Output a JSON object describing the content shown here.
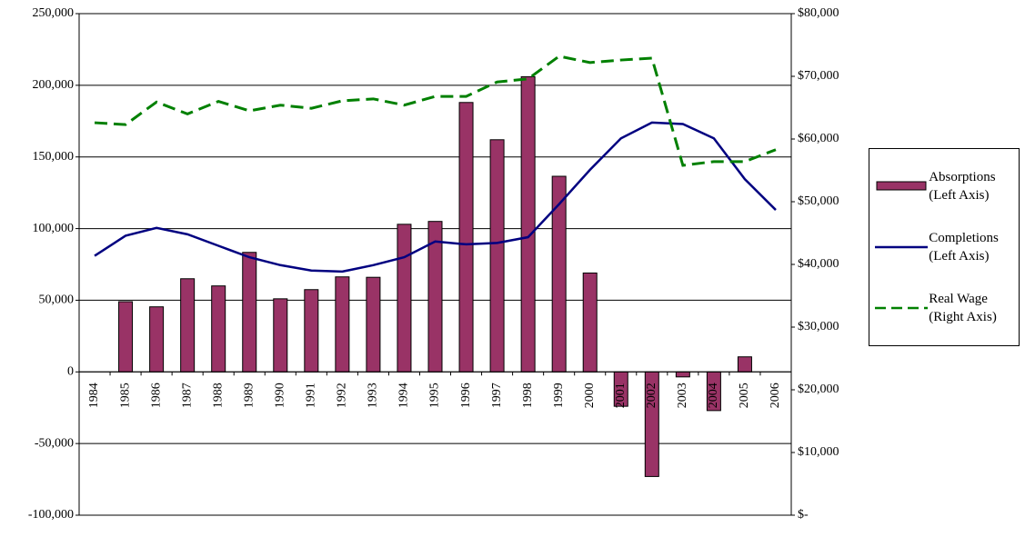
{
  "chart_data": {
    "type": "bar-line",
    "categories": [
      "1984",
      "1985",
      "1986",
      "1987",
      "1988",
      "1989",
      "1990",
      "1991",
      "1992",
      "1993",
      "1994",
      "1995",
      "1996",
      "1997",
      "1998",
      "1999",
      "2000",
      "2001",
      "2002",
      "2003",
      "2004",
      "2005",
      "2006"
    ],
    "series": [
      {
        "name": "Absorptions (Left Axis)",
        "type": "bar",
        "color": "#993366",
        "axis": "y",
        "values": [
          null,
          49000,
          45400,
          65000,
          60000,
          83400,
          51000,
          57400,
          66300,
          66000,
          103000,
          105000,
          188000,
          162000,
          206000,
          136500,
          69000,
          -24000,
          -73000,
          -3500,
          -27000,
          10500,
          null
        ]
      },
      {
        "name": "Completions (Left Axis)",
        "type": "line",
        "color": "#000080",
        "axis": "y",
        "values": [
          81000,
          95000,
          100500,
          96000,
          88000,
          80000,
          74500,
          70700,
          70000,
          74500,
          80000,
          91000,
          89000,
          90000,
          94000,
          117000,
          141000,
          163000,
          174000,
          173000,
          163000,
          134500,
          113000
        ]
      },
      {
        "name": "Real Wage (Right Axis)",
        "type": "dashed-line",
        "color": "#008000",
        "axis": "y2",
        "values": [
          62600,
          62300,
          65900,
          64000,
          66000,
          64500,
          65400,
          64900,
          66100,
          66400,
          65400,
          66800,
          66800,
          69100,
          69600,
          73200,
          72200,
          72600,
          72900,
          55800,
          56400,
          56400,
          58300
        ]
      }
    ],
    "ylim": [
      -100000,
      250000
    ],
    "yticks": [
      {
        "value": -100000,
        "label": "-100,000"
      },
      {
        "value": -50000,
        "label": "-50,000"
      },
      0,
      {
        "value": 50000,
        "label": "50,000"
      },
      {
        "value": 100000,
        "label": "100,000"
      },
      {
        "value": 150000,
        "label": "150,000"
      },
      {
        "value": 200000,
        "label": "200,000"
      },
      {
        "value": 250000,
        "label": "250,000"
      }
    ],
    "y2lim": [
      0,
      80000
    ],
    "y2ticks": [
      {
        "value": 0,
        "label": "$-"
      },
      {
        "value": 10000,
        "label": "$10,000"
      },
      {
        "value": 20000,
        "label": "$20,000"
      },
      {
        "value": 30000,
        "label": "$30,000"
      },
      {
        "value": 40000,
        "label": "$40,000"
      },
      {
        "value": 50000,
        "label": "$50,000"
      },
      {
        "value": 60000,
        "label": "$60,000"
      },
      {
        "value": 70000,
        "label": "$70,000"
      },
      {
        "value": 80000,
        "label": "$80,000"
      }
    ],
    "grid": true,
    "legend": "right"
  }
}
